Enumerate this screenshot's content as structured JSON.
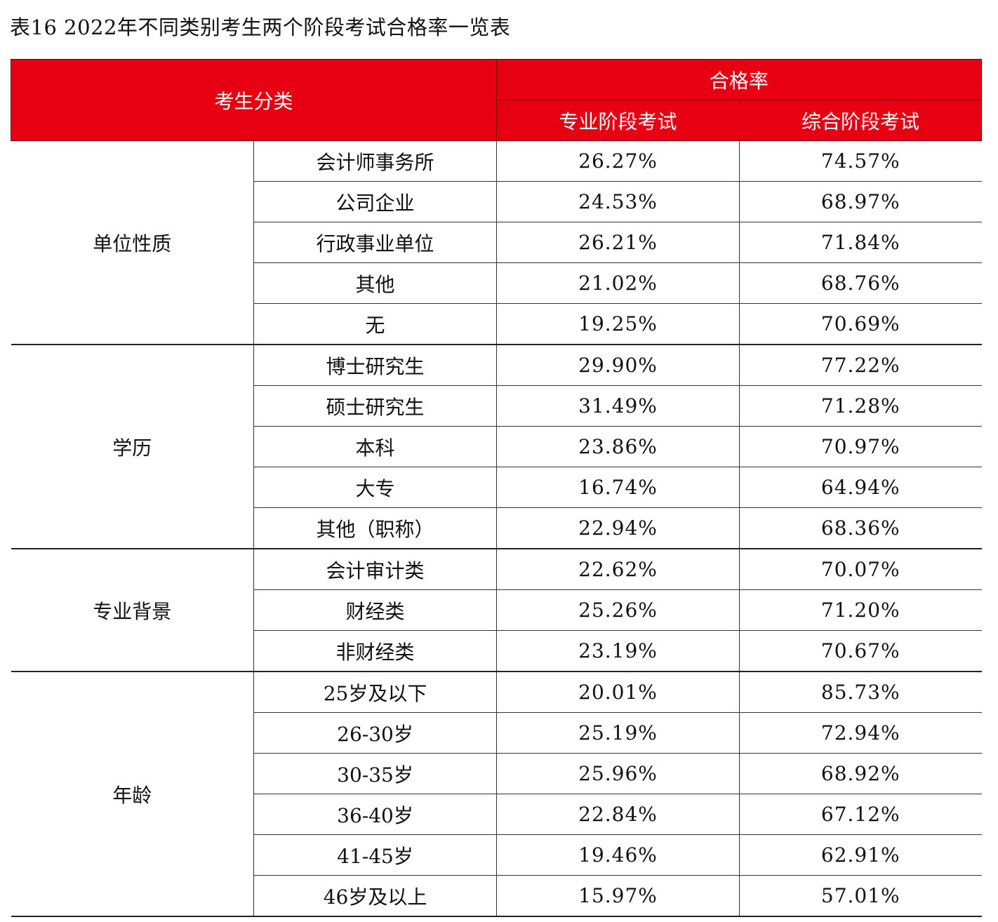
{
  "title": "表16  2022年不同类别考生两个阶段考试合格率一览表",
  "header": {
    "category": "考生分类",
    "pass_rate": "合格率",
    "professional": "专业阶段考试",
    "comprehensive": "综合阶段考试"
  },
  "colors": {
    "header_bg": "#e60012",
    "header_text": "#ffffff"
  },
  "groups": [
    {
      "name": "单位性质",
      "rows": [
        {
          "label": "会计师事务所",
          "professional": "26.27%",
          "comprehensive": "74.57%"
        },
        {
          "label": "公司企业",
          "professional": "24.53%",
          "comprehensive": "68.97%"
        },
        {
          "label": "行政事业单位",
          "professional": "26.21%",
          "comprehensive": "71.84%"
        },
        {
          "label": "其他",
          "professional": "21.02%",
          "comprehensive": "68.76%"
        },
        {
          "label": "无",
          "professional": "19.25%",
          "comprehensive": "70.69%"
        }
      ]
    },
    {
      "name": "学历",
      "rows": [
        {
          "label": "博士研究生",
          "professional": "29.90%",
          "comprehensive": "77.22%"
        },
        {
          "label": "硕士研究生",
          "professional": "31.49%",
          "comprehensive": "71.28%"
        },
        {
          "label": "本科",
          "professional": "23.86%",
          "comprehensive": "70.97%"
        },
        {
          "label": "大专",
          "professional": "16.74%",
          "comprehensive": "64.94%"
        },
        {
          "label": "其他（职称）",
          "professional": "22.94%",
          "comprehensive": "68.36%"
        }
      ]
    },
    {
      "name": "专业背景",
      "rows": [
        {
          "label": "会计审计类",
          "professional": "22.62%",
          "comprehensive": "70.07%"
        },
        {
          "label": "财经类",
          "professional": "25.26%",
          "comprehensive": "71.20%"
        },
        {
          "label": "非财经类",
          "professional": "23.19%",
          "comprehensive": "70.67%"
        }
      ]
    },
    {
      "name": "年龄",
      "rows": [
        {
          "label": "25岁及以下",
          "professional": "20.01%",
          "comprehensive": "85.73%"
        },
        {
          "label": "26-30岁",
          "professional": "25.19%",
          "comprehensive": "72.94%"
        },
        {
          "label": "30-35岁",
          "professional": "25.96%",
          "comprehensive": "68.92%"
        },
        {
          "label": "36-40岁",
          "professional": "22.84%",
          "comprehensive": "67.12%"
        },
        {
          "label": "41-45岁",
          "professional": "19.46%",
          "comprehensive": "62.91%"
        },
        {
          "label": "46岁及以上",
          "professional": "15.97%",
          "comprehensive": "57.01%"
        }
      ]
    }
  ]
}
